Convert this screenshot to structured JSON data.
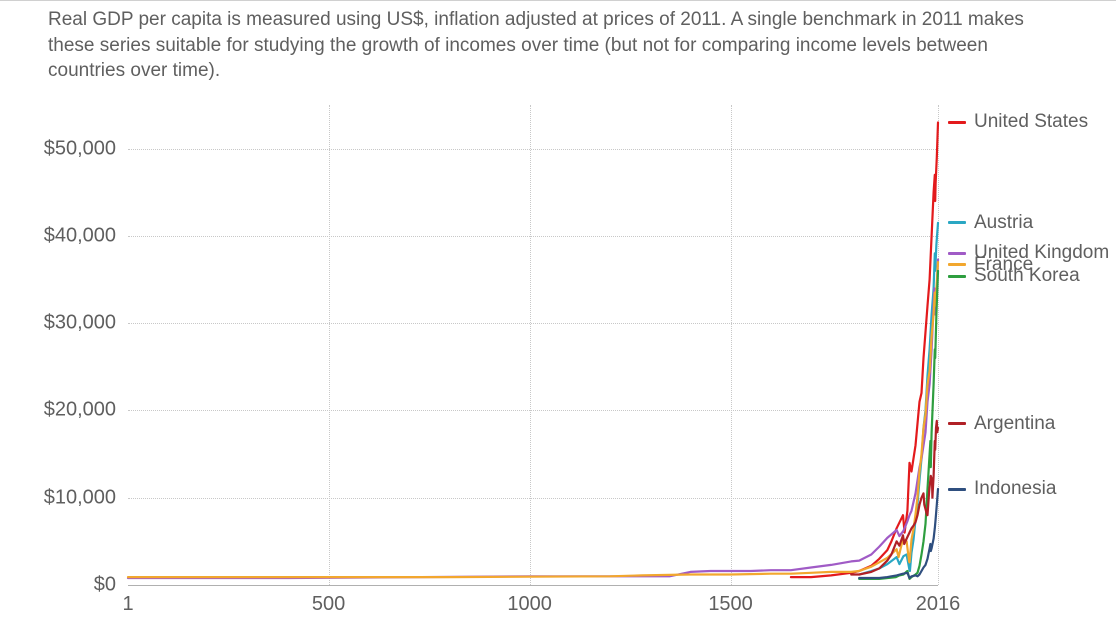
{
  "subtitle": "Real GDP per capita is measured using US$, inflation adjusted at prices of 2011. A single benchmark in 2011 makes these series suitable for studying the growth of incomes over time (but not for comparing income levels between countries over time).",
  "colors": {
    "text": "#5f5f5f",
    "grid": "#c8c8c8",
    "axis": "#b0b0b0",
    "background": "#ffffff"
  },
  "chart": {
    "type": "line",
    "x": {
      "min": 1,
      "max": 2016,
      "ticks": [
        1,
        500,
        1000,
        1500,
        2016
      ]
    },
    "y": {
      "min": 0,
      "max": 55000,
      "ticks": [
        0,
        10000,
        20000,
        30000,
        40000,
        50000
      ],
      "tick_labels": [
        "$0",
        "$10,000",
        "$20,000",
        "$30,000",
        "$40,000",
        "$50,000"
      ]
    },
    "y_label_fontsize": 20,
    "x_label_fontsize": 20,
    "line_width": 2.2,
    "series": [
      {
        "name": "United States",
        "color": "#e31a1c",
        "legend_y": 53000,
        "points": [
          [
            1650,
            900
          ],
          [
            1700,
            900
          ],
          [
            1750,
            1100
          ],
          [
            1800,
            1400
          ],
          [
            1820,
            1600
          ],
          [
            1850,
            2200
          ],
          [
            1870,
            3000
          ],
          [
            1890,
            4000
          ],
          [
            1900,
            5000
          ],
          [
            1913,
            6500
          ],
          [
            1929,
            8000
          ],
          [
            1933,
            6000
          ],
          [
            1940,
            8500
          ],
          [
            1945,
            14000
          ],
          [
            1950,
            13000
          ],
          [
            1960,
            16000
          ],
          [
            1970,
            21000
          ],
          [
            1975,
            22000
          ],
          [
            1980,
            26000
          ],
          [
            1985,
            29000
          ],
          [
            1990,
            32000
          ],
          [
            1995,
            35000
          ],
          [
            2000,
            40000
          ],
          [
            2005,
            45000
          ],
          [
            2008,
            47000
          ],
          [
            2009,
            44000
          ],
          [
            2010,
            46000
          ],
          [
            2013,
            49000
          ],
          [
            2016,
            53000
          ]
        ]
      },
      {
        "name": "Austria",
        "color": "#2aa7c3",
        "legend_y": 41500,
        "points": [
          [
            1820,
            1200
          ],
          [
            1850,
            1600
          ],
          [
            1870,
            1900
          ],
          [
            1890,
            2400
          ],
          [
            1913,
            3200
          ],
          [
            1920,
            2400
          ],
          [
            1930,
            3300
          ],
          [
            1938,
            3500
          ],
          [
            1945,
            1700
          ],
          [
            1946,
            1600
          ],
          [
            1950,
            3700
          ],
          [
            1955,
            5200
          ],
          [
            1960,
            7500
          ],
          [
            1965,
            9300
          ],
          [
            1970,
            12000
          ],
          [
            1975,
            14500
          ],
          [
            1980,
            18000
          ],
          [
            1985,
            20000
          ],
          [
            1990,
            24000
          ],
          [
            1995,
            27000
          ],
          [
            2000,
            31000
          ],
          [
            2005,
            34000
          ],
          [
            2008,
            38000
          ],
          [
            2009,
            36000
          ],
          [
            2012,
            39000
          ],
          [
            2016,
            41500
          ]
        ]
      },
      {
        "name": "United Kingdom",
        "color": "#a05bc6",
        "legend_y": 38000,
        "points": [
          [
            1,
            800
          ],
          [
            200,
            800
          ],
          [
            400,
            800
          ],
          [
            730,
            900
          ],
          [
            1000,
            1000
          ],
          [
            1086,
            1000
          ],
          [
            1200,
            1000
          ],
          [
            1270,
            1000
          ],
          [
            1300,
            1000
          ],
          [
            1348,
            1000
          ],
          [
            1400,
            1500
          ],
          [
            1450,
            1600
          ],
          [
            1500,
            1600
          ],
          [
            1550,
            1600
          ],
          [
            1600,
            1700
          ],
          [
            1650,
            1700
          ],
          [
            1700,
            2000
          ],
          [
            1750,
            2300
          ],
          [
            1800,
            2700
          ],
          [
            1820,
            2800
          ],
          [
            1850,
            3500
          ],
          [
            1870,
            4400
          ],
          [
            1890,
            5400
          ],
          [
            1913,
            6300
          ],
          [
            1920,
            5600
          ],
          [
            1930,
            6200
          ],
          [
            1940,
            7300
          ],
          [
            1945,
            8000
          ],
          [
            1950,
            8500
          ],
          [
            1960,
            10500
          ],
          [
            1970,
            13500
          ],
          [
            1975,
            14500
          ],
          [
            1980,
            16000
          ],
          [
            1985,
            17500
          ],
          [
            1990,
            21000
          ],
          [
            1995,
            23000
          ],
          [
            2000,
            27000
          ],
          [
            2005,
            32000
          ],
          [
            2007,
            34000
          ],
          [
            2009,
            31000
          ],
          [
            2012,
            33000
          ],
          [
            2016,
            37300
          ]
        ]
      },
      {
        "name": "France",
        "color": "#f2a72e",
        "legend_y": 36700,
        "points": [
          [
            1,
            900
          ],
          [
            200,
            900
          ],
          [
            400,
            900
          ],
          [
            600,
            900
          ],
          [
            800,
            900
          ],
          [
            1000,
            950
          ],
          [
            1200,
            1000
          ],
          [
            1280,
            1100
          ],
          [
            1400,
            1200
          ],
          [
            1500,
            1200
          ],
          [
            1600,
            1300
          ],
          [
            1650,
            1300
          ],
          [
            1700,
            1400
          ],
          [
            1750,
            1500
          ],
          [
            1789,
            1500
          ],
          [
            1800,
            1500
          ],
          [
            1820,
            1600
          ],
          [
            1850,
            2100
          ],
          [
            1870,
            2600
          ],
          [
            1890,
            3100
          ],
          [
            1913,
            4100
          ],
          [
            1918,
            3200
          ],
          [
            1929,
            5300
          ],
          [
            1938,
            5000
          ],
          [
            1944,
            2700
          ],
          [
            1945,
            2600
          ],
          [
            1950,
            5200
          ],
          [
            1955,
            6400
          ],
          [
            1960,
            8100
          ],
          [
            1965,
            10100
          ],
          [
            1970,
            13000
          ],
          [
            1975,
            15000
          ],
          [
            1980,
            18000
          ],
          [
            1985,
            19500
          ],
          [
            1990,
            23000
          ],
          [
            1995,
            24500
          ],
          [
            2000,
            28500
          ],
          [
            2005,
            31000
          ],
          [
            2008,
            33500
          ],
          [
            2009,
            32000
          ],
          [
            2012,
            34000
          ],
          [
            2016,
            37000
          ]
        ]
      },
      {
        "name": "South Korea",
        "color": "#2e9e3f",
        "legend_y": 35400,
        "points": [
          [
            1820,
            700
          ],
          [
            1870,
            700
          ],
          [
            1911,
            900
          ],
          [
            1920,
            1100
          ],
          [
            1930,
            1200
          ],
          [
            1940,
            1600
          ],
          [
            1945,
            700
          ],
          [
            1950,
            900
          ],
          [
            1953,
            1000
          ],
          [
            1960,
            1200
          ],
          [
            1965,
            1400
          ],
          [
            1970,
            2200
          ],
          [
            1975,
            3500
          ],
          [
            1980,
            5000
          ],
          [
            1985,
            7000
          ],
          [
            1990,
            11000
          ],
          [
            1995,
            15000
          ],
          [
            1997,
            16500
          ],
          [
            1998,
            13500
          ],
          [
            2000,
            17500
          ],
          [
            2005,
            23000
          ],
          [
            2008,
            27000
          ],
          [
            2009,
            26000
          ],
          [
            2012,
            31000
          ],
          [
            2016,
            36000
          ]
        ]
      },
      {
        "name": "Argentina",
        "color": "#b02026",
        "legend_y": 18500,
        "points": [
          [
            1800,
            1200
          ],
          [
            1820,
            1200
          ],
          [
            1850,
            1500
          ],
          [
            1870,
            1900
          ],
          [
            1890,
            2800
          ],
          [
            1900,
            3500
          ],
          [
            1913,
            5000
          ],
          [
            1920,
            4500
          ],
          [
            1929,
            5700
          ],
          [
            1932,
            4700
          ],
          [
            1940,
            5500
          ],
          [
            1950,
            6500
          ],
          [
            1955,
            6800
          ],
          [
            1960,
            7200
          ],
          [
            1965,
            8000
          ],
          [
            1970,
            9200
          ],
          [
            1975,
            10000
          ],
          [
            1980,
            10500
          ],
          [
            1982,
            9200
          ],
          [
            1985,
            8700
          ],
          [
            1989,
            8000
          ],
          [
            1990,
            8000
          ],
          [
            1994,
            10800
          ],
          [
            1998,
            12500
          ],
          [
            2001,
            12000
          ],
          [
            2002,
            10000
          ],
          [
            2005,
            12500
          ],
          [
            2008,
            16500
          ],
          [
            2009,
            15500
          ],
          [
            2011,
            18000
          ],
          [
            2013,
            18800
          ],
          [
            2014,
            17500
          ],
          [
            2016,
            18000
          ]
        ]
      },
      {
        "name": "Indonesia",
        "color": "#2f4f7f",
        "legend_y": 11000,
        "points": [
          [
            1820,
            800
          ],
          [
            1850,
            800
          ],
          [
            1870,
            800
          ],
          [
            1890,
            900
          ],
          [
            1913,
            1100
          ],
          [
            1929,
            1300
          ],
          [
            1940,
            1400
          ],
          [
            1945,
            800
          ],
          [
            1950,
            1000
          ],
          [
            1960,
            1100
          ],
          [
            1965,
            1000
          ],
          [
            1970,
            1200
          ],
          [
            1975,
            1600
          ],
          [
            1980,
            2000
          ],
          [
            1985,
            2300
          ],
          [
            1990,
            3000
          ],
          [
            1995,
            4200
          ],
          [
            1997,
            4700
          ],
          [
            1998,
            3900
          ],
          [
            2000,
            4200
          ],
          [
            2005,
            5300
          ],
          [
            2008,
            6500
          ],
          [
            2010,
            7500
          ],
          [
            2013,
            9200
          ],
          [
            2016,
            11000
          ]
        ]
      }
    ]
  }
}
